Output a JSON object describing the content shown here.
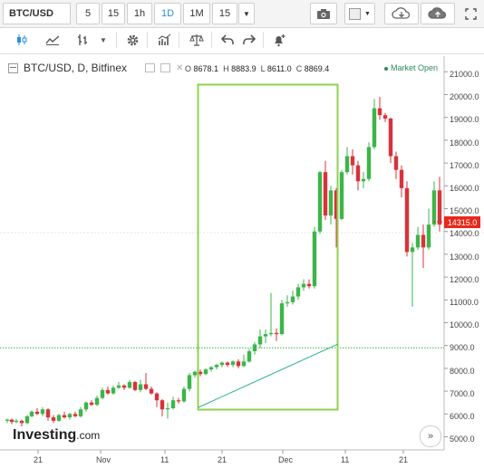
{
  "toolbar": {
    "symbol": "BTC/USD",
    "intervals": [
      "5",
      "15",
      "1h",
      "1D",
      "1M",
      "15"
    ],
    "selected_interval": "1D"
  },
  "legend": {
    "title": "BTC/USD, D, Bitfinex",
    "open_label": "O",
    "open": "8678.1",
    "high_label": "H",
    "high": "8883.9",
    "low_label": "L",
    "low": "8611.0",
    "close_label": "C",
    "close": "8869.4",
    "market_status": "Market Open"
  },
  "y_axis_labels": [
    "21000.0",
    "20000.0",
    "19000.0",
    "18000.0",
    "17000.0",
    "16000.0",
    "15000.0",
    "14000.0",
    "13000.0",
    "12000.0",
    "11000.0",
    "10000.0",
    "9000.0",
    "8000.0",
    "7000.0",
    "6000.0",
    "5000.0"
  ],
  "x_axis_labels": [
    "21",
    "Nov",
    "11",
    "21",
    "Dec",
    "11",
    "21"
  ],
  "current_price": "14315.0",
  "branding": {
    "logo_main": "Investing",
    "logo_suffix": ".com"
  },
  "colors": {
    "up": "#3cb54a",
    "down": "#d9323a",
    "box": "#8fd14f",
    "trend": "#2bb38a",
    "guide": "#33b24a",
    "price_tag": "#e8291c"
  },
  "icons": {
    "camera": "camera-icon",
    "cloud_down": "cloud-download-icon",
    "cloud_up": "cloud-upload-icon",
    "fullscreen": "fullscreen-icon",
    "candles": "candles-icon",
    "indicators": "indicators-icon",
    "settings": "gear-icon",
    "compare": "compare-icon",
    "undo": "undo-icon",
    "redo": "redo-icon",
    "alert": "alert-icon"
  }
}
